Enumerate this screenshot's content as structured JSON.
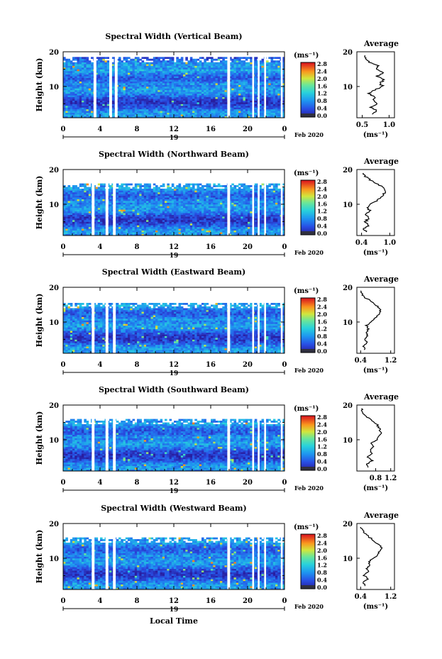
{
  "figure": {
    "xlabel": "Local Time",
    "ylabel": "Height (km)",
    "date_label": "19",
    "month_label": "Feb 2020",
    "colorbar_unit": "(ms⁻¹)",
    "colorbar_ticks": [
      "0.0",
      "0.4",
      "0.8",
      "1.2",
      "1.6",
      "2.0",
      "2.4",
      "2.8"
    ],
    "avg_title": "Average",
    "avg_xlabel": "(ms⁻¹)"
  },
  "chart_data": [
    {
      "type": "heatmap",
      "title": "Spectral Width (Vertical Beam)",
      "x_ticks": [
        "0",
        "4",
        "8",
        "12",
        "16",
        "20",
        "0"
      ],
      "y_ticks": [
        "20",
        "10"
      ],
      "xlim": [
        0,
        24
      ],
      "ylim": [
        1,
        20
      ],
      "top_height_km": 18.5,
      "color_scale": [
        0.0,
        2.8
      ],
      "data_gaps_hours": [
        [
          3.3,
          3.6
        ],
        [
          5.0,
          5.3
        ],
        [
          5.6,
          5.9
        ],
        [
          17.8,
          18.1
        ],
        [
          20.5,
          20.7
        ],
        [
          21.1,
          21.3
        ],
        [
          21.8,
          22.0
        ],
        [
          23.6,
          23.8
        ]
      ],
      "average_profile": {
        "xlim": [
          0.4,
          1.1
        ],
        "x_ticks": [
          "0.5",
          "1.0"
        ],
        "y_ticks": [
          "20",
          "10"
        ],
        "height_km": [
          2,
          3,
          4,
          5,
          6,
          7,
          8,
          9,
          10,
          11,
          12,
          13,
          14,
          15,
          16,
          17,
          18,
          19
        ],
        "value": [
          0.7,
          0.78,
          0.66,
          0.8,
          0.7,
          0.74,
          0.62,
          0.72,
          0.88,
          0.82,
          0.92,
          0.78,
          0.9,
          0.74,
          0.8,
          0.64,
          0.58,
          0.55
        ]
      }
    },
    {
      "type": "heatmap",
      "title": "Spectral Width (Northward Beam)",
      "x_ticks": [
        "0",
        "4",
        "8",
        "12",
        "16",
        "20",
        "0"
      ],
      "y_ticks": [
        "20",
        "10"
      ],
      "xlim": [
        0,
        24
      ],
      "ylim": [
        1,
        20
      ],
      "top_height_km": 16.0,
      "color_scale": [
        0.0,
        2.8
      ],
      "data_gaps_hours": [
        [
          3.1,
          3.4
        ],
        [
          4.6,
          4.9
        ],
        [
          5.4,
          5.7
        ],
        [
          17.8,
          18.1
        ],
        [
          20.5,
          20.7
        ],
        [
          21.1,
          21.3
        ],
        [
          21.8,
          22.0
        ],
        [
          23.6,
          23.8
        ]
      ],
      "average_profile": {
        "xlim": [
          0.3,
          1.1
        ],
        "x_ticks": [
          "0.4",
          "1.0"
        ],
        "y_ticks": [
          "20",
          "10"
        ],
        "height_km": [
          2,
          3,
          4,
          5,
          6,
          7,
          8,
          9,
          10,
          11,
          12,
          13,
          14,
          15,
          16,
          17,
          18,
          19
        ],
        "value": [
          0.5,
          0.44,
          0.56,
          0.48,
          0.55,
          0.5,
          0.58,
          0.52,
          0.6,
          0.72,
          0.8,
          0.88,
          0.92,
          0.84,
          0.7,
          0.58,
          0.48,
          0.44
        ]
      }
    },
    {
      "type": "heatmap",
      "title": "Spectral Width (Eastward Beam)",
      "x_ticks": [
        "0",
        "4",
        "8",
        "12",
        "16",
        "20",
        "0"
      ],
      "y_ticks": [
        "20",
        "10"
      ],
      "xlim": [
        0,
        24
      ],
      "ylim": [
        1,
        20
      ],
      "top_height_km": 15.5,
      "color_scale": [
        0.0,
        2.8
      ],
      "data_gaps_hours": [
        [
          3.1,
          3.4
        ],
        [
          4.6,
          4.9
        ],
        [
          5.4,
          5.7
        ],
        [
          17.8,
          18.1
        ],
        [
          20.5,
          20.7
        ],
        [
          21.1,
          21.3
        ],
        [
          21.8,
          22.0
        ],
        [
          23.6,
          23.8
        ]
      ],
      "average_profile": {
        "xlim": [
          0.3,
          1.3
        ],
        "x_ticks": [
          "0.4",
          "1.2"
        ],
        "y_ticks": [
          "20",
          "10"
        ],
        "height_km": [
          2,
          3,
          4,
          5,
          6,
          7,
          8,
          9,
          10,
          11,
          12,
          13,
          14,
          15,
          16,
          17,
          18,
          19
        ],
        "value": [
          0.52,
          0.48,
          0.58,
          0.5,
          0.6,
          0.54,
          0.62,
          0.56,
          0.66,
          0.78,
          0.86,
          0.94,
          0.88,
          0.8,
          0.68,
          0.52,
          0.44,
          0.4
        ]
      }
    },
    {
      "type": "heatmap",
      "title": "Spectral Width (Southward Beam)",
      "x_ticks": [
        "0",
        "4",
        "8",
        "12",
        "16",
        "20",
        "0"
      ],
      "y_ticks": [
        "20",
        "10"
      ],
      "xlim": [
        0,
        24
      ],
      "ylim": [
        1,
        20
      ],
      "top_height_km": 16.0,
      "color_scale": [
        0.0,
        2.8
      ],
      "data_gaps_hours": [
        [
          3.1,
          3.4
        ],
        [
          4.6,
          4.9
        ],
        [
          5.4,
          5.7
        ],
        [
          17.8,
          18.1
        ],
        [
          20.5,
          20.7
        ],
        [
          21.1,
          21.3
        ],
        [
          21.8,
          22.0
        ],
        [
          23.6,
          23.8
        ]
      ],
      "average_profile": {
        "xlim": [
          0.3,
          1.3
        ],
        "x_ticks": [
          "0.8",
          "1.2"
        ],
        "y_ticks": [
          "20",
          "10"
        ],
        "height_km": [
          2,
          3,
          4,
          5,
          6,
          7,
          8,
          9,
          10,
          11,
          12,
          13,
          14,
          15,
          16,
          17,
          18,
          19
        ],
        "value": [
          0.62,
          0.56,
          0.7,
          0.58,
          0.72,
          0.64,
          0.76,
          0.7,
          0.82,
          0.88,
          0.94,
          0.9,
          0.86,
          0.78,
          0.66,
          0.52,
          0.46,
          0.42
        ]
      }
    },
    {
      "type": "heatmap",
      "title": "Spectral Width (Westward Beam)",
      "x_ticks": [
        "0",
        "4",
        "8",
        "12",
        "16",
        "20",
        "0"
      ],
      "y_ticks": [
        "20",
        "10"
      ],
      "xlim": [
        0,
        24
      ],
      "ylim": [
        1,
        20
      ],
      "top_height_km": 16.0,
      "color_scale": [
        0.0,
        2.8
      ],
      "data_gaps_hours": [
        [
          3.1,
          3.4
        ],
        [
          4.6,
          4.9
        ],
        [
          5.4,
          5.7
        ],
        [
          17.8,
          18.1
        ],
        [
          20.5,
          20.7
        ],
        [
          21.1,
          21.3
        ],
        [
          21.8,
          22.0
        ],
        [
          23.6,
          23.8
        ]
      ],
      "average_profile": {
        "xlim": [
          0.3,
          1.3
        ],
        "x_ticks": [
          "0.4",
          "1.2"
        ],
        "y_ticks": [
          "20",
          "10"
        ],
        "height_km": [
          2,
          3,
          4,
          5,
          6,
          7,
          8,
          9,
          10,
          11,
          12,
          13,
          14,
          15,
          16,
          17,
          18,
          19
        ],
        "value": [
          0.52,
          0.46,
          0.58,
          0.5,
          0.6,
          0.56,
          0.66,
          0.62,
          0.74,
          0.84,
          0.92,
          0.96,
          0.88,
          0.76,
          0.64,
          0.52,
          0.44,
          0.4
        ]
      }
    }
  ]
}
